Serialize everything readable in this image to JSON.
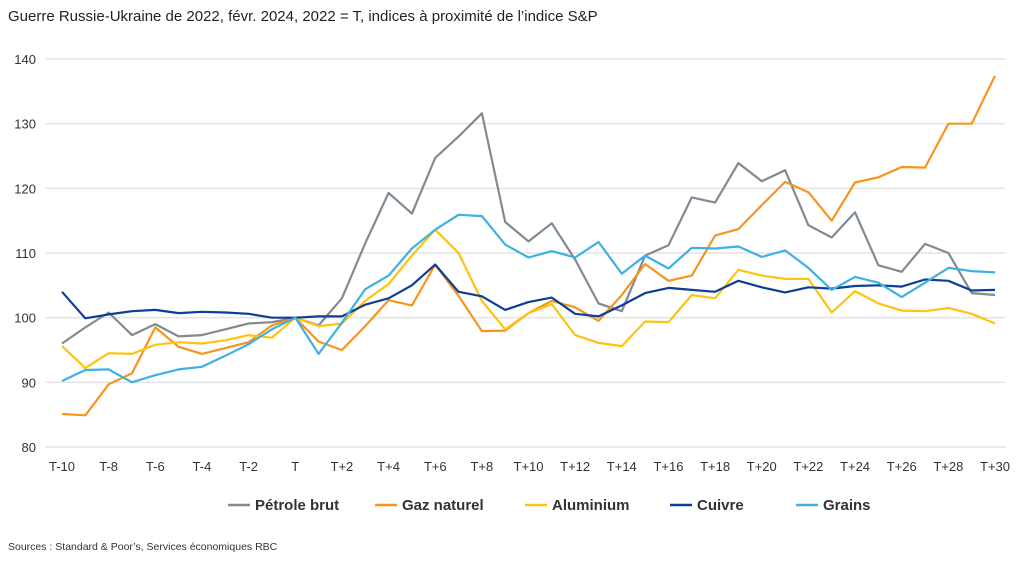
{
  "chart_data": {
    "type": "line",
    "title": "Guerre Russie-Ukraine de 2022, févr. 2024, 2022 = T, indices à proximité de l’indice S&P",
    "source": "Sources : Standard & Poor’s, Services économiques RBC",
    "xlabel": "",
    "ylabel": "",
    "ylim": [
      80,
      140
    ],
    "yticks": [
      80,
      90,
      100,
      110,
      120,
      130,
      140
    ],
    "grid": true,
    "legend_position": "bottom",
    "x": [
      "T-10",
      "T-9",
      "T-8",
      "T-7",
      "T-6",
      "T-5",
      "T-4",
      "T-3",
      "T-2",
      "T-1",
      "T",
      "T+1",
      "T+2",
      "T+3",
      "T+4",
      "T+5",
      "T+6",
      "T+7",
      "T+8",
      "T+9",
      "T+10",
      "T+11",
      "T+12",
      "T+13",
      "T+14",
      "T+15",
      "T+16",
      "T+17",
      "T+18",
      "T+19",
      "T+20",
      "T+21",
      "T+22",
      "T+23",
      "T+24",
      "T+25",
      "T+26",
      "T+27",
      "T+28",
      "T+29",
      "T+30"
    ],
    "xtick_labels": [
      "T-10",
      "T-8",
      "T-6",
      "T-4",
      "T-2",
      "T",
      "T+2",
      "T+4",
      "T+6",
      "T+8",
      "T+10",
      "T+12",
      "T+14",
      "T+16",
      "T+18",
      "T+20",
      "T+22",
      "T+24",
      "T+26",
      "T+28",
      "T+30"
    ],
    "series": [
      {
        "name": "Pétrole brut",
        "color": "#7f8a93",
        "values": [
          96,
          98.5,
          100.8,
          97.3,
          99,
          97.1,
          97.3,
          98.2,
          99.1,
          99.3,
          100,
          98.8,
          103,
          111.5,
          119.3,
          116.1,
          124.7,
          128,
          131.6,
          114.8,
          111.8,
          114.6,
          109,
          102.2,
          101,
          109.6,
          111.2,
          118.6,
          117.8,
          123.9,
          121.1,
          122.8,
          114.3,
          112.4,
          116.3,
          108.1,
          107.1,
          111.4,
          110,
          103.8,
          103.5
        ]
      },
      {
        "name": "Gaz naturel",
        "color": "#f7941d",
        "values": [
          85.1,
          84.9,
          89.7,
          91.4,
          98.5,
          95.5,
          94.4,
          95.3,
          96.2,
          98.8,
          100,
          96.3,
          95,
          98.7,
          102.7,
          101.9,
          108.2,
          103.4,
          97.9,
          98,
          100.7,
          102.6,
          101.6,
          99.5,
          103.5,
          108.3,
          105.7,
          106.5,
          112.7,
          113.7,
          117.4,
          121,
          119.4,
          115,
          120.9,
          121.7,
          123.3,
          123.2,
          130,
          130,
          137.4
        ]
      },
      {
        "name": "Aluminium",
        "color": "#ffc20e",
        "values": [
          95.6,
          92.2,
          94.5,
          94.4,
          95.8,
          96.2,
          96,
          96.5,
          97.3,
          96.9,
          100,
          98.7,
          99.1,
          102.6,
          105.2,
          109.6,
          113.6,
          110,
          102.6,
          98.2,
          100.7,
          102.1,
          97.3,
          96.1,
          95.6,
          99.4,
          99.3,
          103.5,
          103,
          107.4,
          106.5,
          106,
          106,
          100.8,
          104.1,
          102.2,
          101.1,
          101,
          101.5,
          100.6,
          99.1
        ]
      },
      {
        "name": "Cuivre",
        "color": "#0d3d96",
        "values": [
          104,
          99.9,
          100.5,
          101,
          101.2,
          100.7,
          100.9,
          100.8,
          100.6,
          100,
          100,
          100.2,
          100.2,
          102,
          103,
          105,
          108.2,
          104,
          103.3,
          101.2,
          102.4,
          103.1,
          100.6,
          100.2,
          101.9,
          103.8,
          104.6,
          104.3,
          104,
          105.7,
          104.7,
          103.9,
          104.7,
          104.5,
          104.9,
          105,
          104.8,
          105.9,
          105.7,
          104.2,
          104.3
        ]
      },
      {
        "name": "Grains",
        "color": "#3fb0e3",
        "values": [
          90.2,
          91.9,
          92,
          90,
          91.1,
          92,
          92.4,
          94.1,
          95.9,
          98.2,
          100,
          94.4,
          99.2,
          104.4,
          106.5,
          110.7,
          113.6,
          115.9,
          115.7,
          111.3,
          109.3,
          110.3,
          109.3,
          111.7,
          106.8,
          109.6,
          107.6,
          110.8,
          110.7,
          111,
          109.4,
          110.4,
          107.7,
          104.3,
          106.3,
          105.4,
          103.2,
          105.4,
          107.7,
          107.2,
          107
        ]
      }
    ]
  }
}
